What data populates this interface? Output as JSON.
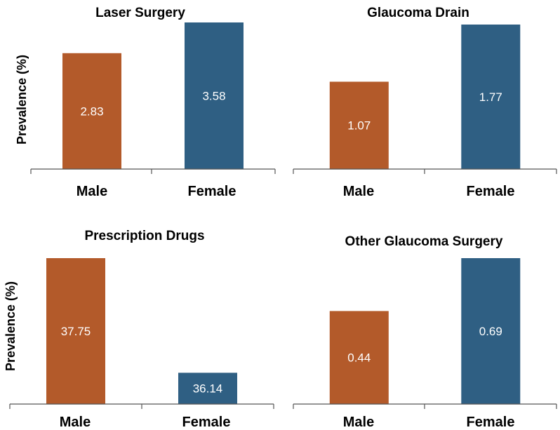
{
  "chart_data": [
    {
      "type": "bar",
      "title": "Laser Surgery",
      "ylabel": "Prevalence (%)",
      "xlabel": "",
      "categories": [
        "Male",
        "Female"
      ],
      "values": [
        2.83,
        3.58
      ],
      "value_labels": [
        "2.83",
        "3.58"
      ],
      "colors": [
        "#B35A2A",
        "#2F5F83"
      ],
      "ylim": [
        0,
        3.58
      ]
    },
    {
      "type": "bar",
      "title": "Glaucoma Drain",
      "ylabel": "",
      "xlabel": "",
      "categories": [
        "Male",
        "Female"
      ],
      "values": [
        1.07,
        1.77
      ],
      "value_labels": [
        "1.07",
        "1.77"
      ],
      "colors": [
        "#B35A2A",
        "#2F5F83"
      ],
      "ylim": [
        0,
        1.77
      ]
    },
    {
      "type": "bar",
      "title": "Prescription Drugs",
      "ylabel": "Prevalence (%)",
      "xlabel": "",
      "categories": [
        "Male",
        "Female"
      ],
      "values": [
        37.75,
        36.14
      ],
      "value_labels": [
        "37.75",
        "36.14"
      ],
      "colors": [
        "#B35A2A",
        "#2F5F83"
      ],
      "ylim": [
        35.7,
        37.75
      ]
    },
    {
      "type": "bar",
      "title": "Other Glaucoma Surgery",
      "ylabel": "",
      "xlabel": "",
      "categories": [
        "Male",
        "Female"
      ],
      "values": [
        0.44,
        0.69
      ],
      "value_labels": [
        "0.44",
        "0.69"
      ],
      "colors": [
        "#B35A2A",
        "#2F5F83"
      ],
      "ylim": [
        0,
        0.69
      ]
    }
  ]
}
